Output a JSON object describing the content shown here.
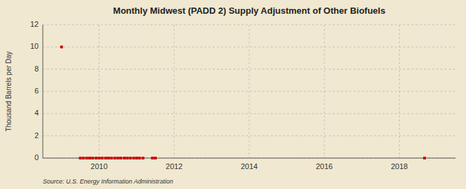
{
  "chart_data": {
    "type": "scatter",
    "title": "Monthly Midwest (PADD 2) Supply Adjustment of Other Biofuels",
    "ylabel": "Thousand Barrels per Day",
    "source": "Source: U.S. Energy Information Administration",
    "color": "#cc0000",
    "marker": "square",
    "grid": true,
    "xlim": [
      2008.5,
      2019.5
    ],
    "xticks": [
      2010,
      2012,
      2014,
      2016,
      2018
    ],
    "ylim": [
      0,
      12
    ],
    "yticks": [
      0,
      2,
      4,
      6,
      8,
      10,
      12
    ],
    "x": [
      2009.0,
      2009.5,
      2009.58,
      2009.67,
      2009.75,
      2009.83,
      2009.92,
      2010.0,
      2010.08,
      2010.17,
      2010.25,
      2010.33,
      2010.42,
      2010.5,
      2010.58,
      2010.67,
      2010.75,
      2010.83,
      2010.92,
      2011.0,
      2011.08,
      2011.17,
      2011.42,
      2011.5,
      2018.67
    ],
    "values": [
      10.0,
      0.0,
      0.0,
      0.0,
      0.0,
      0.0,
      0.0,
      0.0,
      0.0,
      0.0,
      0.0,
      0.0,
      0.0,
      0.0,
      0.0,
      0.0,
      0.0,
      0.0,
      0.0,
      0.0,
      0.0,
      0.0,
      0.0,
      0.0,
      0.0
    ]
  }
}
